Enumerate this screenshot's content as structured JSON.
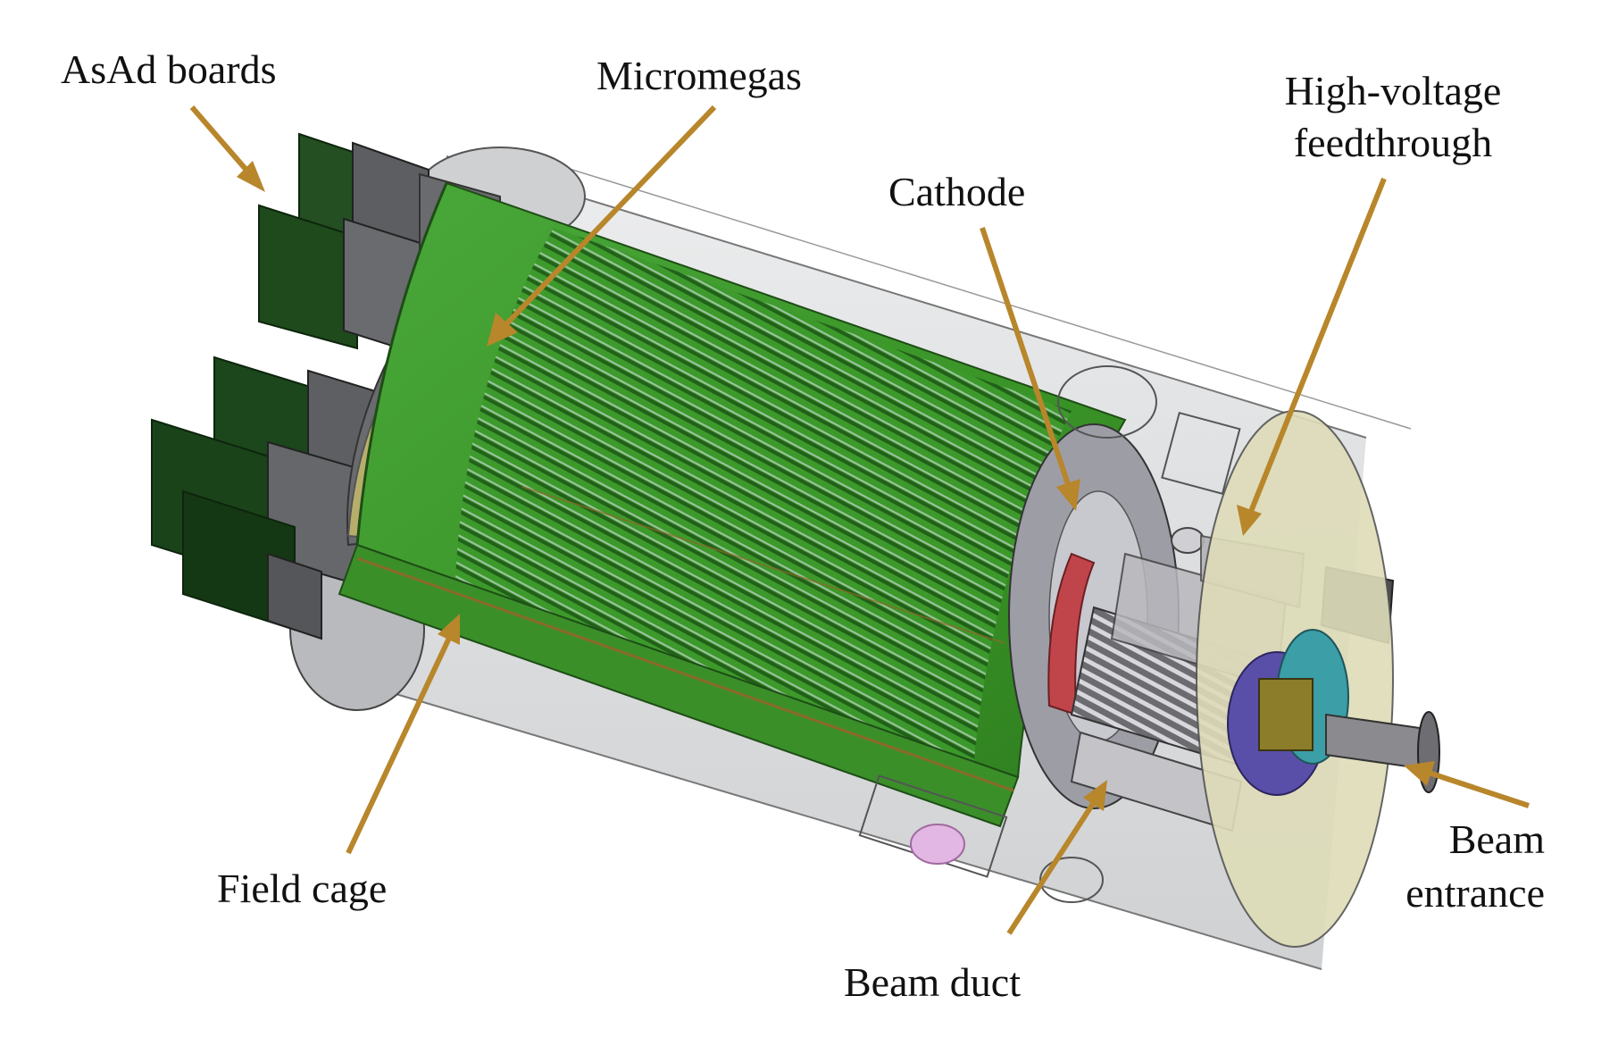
{
  "labels": {
    "asad": "AsAd boards",
    "micromegas": "Micromegas",
    "hv_line1": "High-voltage",
    "hv_line2": "feedthrough",
    "cathode": "Cathode",
    "field_cage": "Field cage",
    "beam_duct": "Beam duct",
    "beam_entrance_line1": "Beam",
    "beam_entrance_line2": "entrance"
  },
  "colors": {
    "arrow": "#B8862B",
    "field_cage_green": "#3E9A2A",
    "board_green": "#1F4A1E",
    "vessel": "#D4D6D8",
    "micromegas_tan": "#B8B070",
    "cathode_gray": "#9A9AA2",
    "flange_cream": "#DEDCB8"
  }
}
